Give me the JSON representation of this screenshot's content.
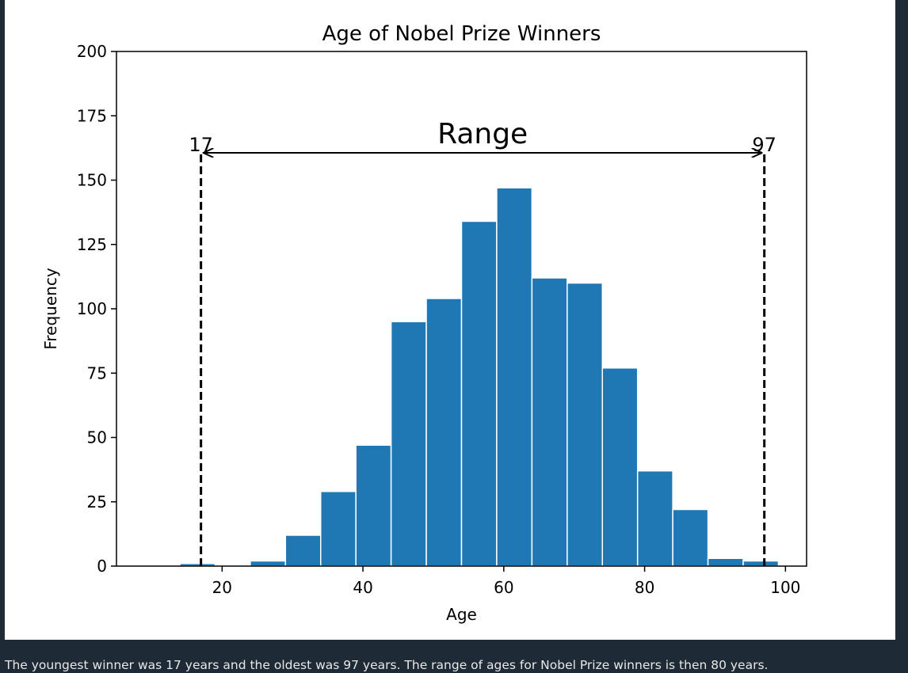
{
  "chart_data": {
    "type": "bar",
    "title": "Age of Nobel Prize Winners",
    "xlabel": "Age",
    "ylabel": "Frequency",
    "xlim": [
      5,
      103
    ],
    "ylim": [
      0,
      200
    ],
    "xticks": [
      20,
      40,
      60,
      80,
      100
    ],
    "yticks": [
      0,
      25,
      50,
      75,
      100,
      125,
      150,
      175,
      200
    ],
    "bar_color": "#1f77b4",
    "bins": [
      {
        "start": 14,
        "end": 19,
        "value": 1
      },
      {
        "start": 19,
        "end": 24,
        "value": 0
      },
      {
        "start": 24,
        "end": 29,
        "value": 2
      },
      {
        "start": 29,
        "end": 34,
        "value": 12
      },
      {
        "start": 34,
        "end": 39,
        "value": 29
      },
      {
        "start": 39,
        "end": 44,
        "value": 47
      },
      {
        "start": 44,
        "end": 49,
        "value": 95
      },
      {
        "start": 49,
        "end": 54,
        "value": 104
      },
      {
        "start": 54,
        "end": 59,
        "value": 134
      },
      {
        "start": 59,
        "end": 64,
        "value": 147
      },
      {
        "start": 64,
        "end": 69,
        "value": 112
      },
      {
        "start": 69,
        "end": 74,
        "value": 110
      },
      {
        "start": 74,
        "end": 79,
        "value": 77
      },
      {
        "start": 79,
        "end": 84,
        "value": 37
      },
      {
        "start": 84,
        "end": 89,
        "value": 22
      },
      {
        "start": 89,
        "end": 94,
        "value": 3
      },
      {
        "start": 94,
        "end": 99,
        "value": 2
      }
    ],
    "annotations": {
      "range_label": "Range",
      "min_value": 17,
      "max_value": 97,
      "min_label": "17",
      "max_label": "97",
      "line_top": 160,
      "arrow_y": 160
    }
  },
  "caption": "The youngest winner was 17 years and the oldest was 97 years. The range of ages for Nobel Prize winners is then 80 years."
}
